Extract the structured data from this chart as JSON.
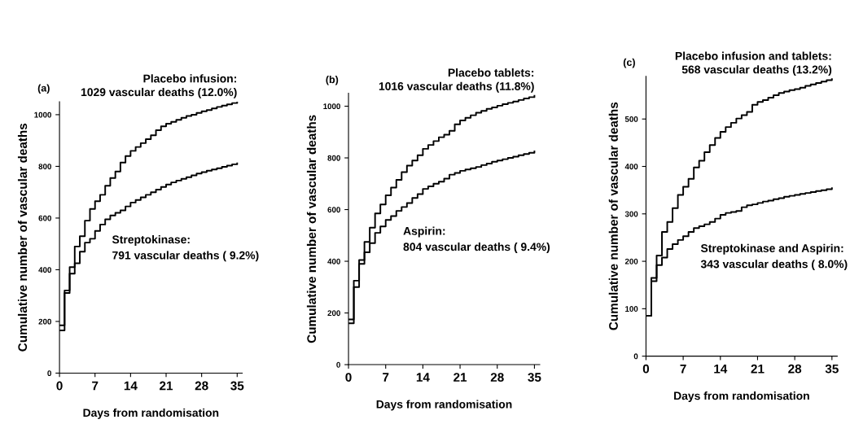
{
  "chart_data": [
    {
      "type": "step",
      "title": "(a)",
      "xlabel": "Days from randomisation",
      "ylabel": "Cumulative number of vascular deaths",
      "x": [
        0,
        1,
        2,
        3,
        4,
        5,
        6,
        7,
        8,
        9,
        10,
        11,
        12,
        13,
        14,
        15,
        16,
        17,
        18,
        19,
        20,
        21,
        22,
        23,
        24,
        25,
        26,
        27,
        28,
        29,
        30,
        31,
        32,
        33,
        34,
        35
      ],
      "series": [
        {
          "name": "Placebo infusion:",
          "color": "#000000",
          "values": [
            185,
            320,
            410,
            490,
            530,
            590,
            635,
            665,
            690,
            725,
            755,
            780,
            815,
            840,
            860,
            875,
            890,
            905,
            920,
            940,
            955,
            965,
            972,
            980,
            988,
            995,
            1000,
            1007,
            1013,
            1018,
            1024,
            1030,
            1035,
            1040,
            1045,
            1050
          ]
        },
        {
          "name": "Streptokinase:",
          "color": "#000000",
          "values": [
            165,
            310,
            385,
            425,
            470,
            505,
            520,
            550,
            575,
            595,
            610,
            620,
            630,
            645,
            660,
            670,
            680,
            690,
            700,
            710,
            720,
            730,
            738,
            745,
            752,
            758,
            765,
            772,
            778,
            783,
            788,
            793,
            798,
            803,
            808,
            812
          ]
        }
      ],
      "annotations": [
        "1029 vascular deaths (12.0%)",
        "791 vascular deaths ( 9.2%)"
      ],
      "xlim": [
        0,
        36
      ],
      "ylim": [
        0,
        1050
      ],
      "xticks": [
        0,
        7,
        14,
        21,
        28,
        35
      ],
      "yticks": [
        0,
        200,
        400,
        600,
        800,
        1000
      ],
      "grid": false,
      "legend": false
    },
    {
      "type": "step",
      "title": "(b)",
      "xlabel": "Days from randomisation",
      "ylabel": "Cumulative number of vascular deaths",
      "x": [
        0,
        1,
        2,
        3,
        4,
        5,
        6,
        7,
        8,
        9,
        10,
        11,
        12,
        13,
        14,
        15,
        16,
        17,
        18,
        19,
        20,
        21,
        22,
        23,
        24,
        25,
        26,
        27,
        28,
        29,
        30,
        31,
        32,
        33,
        34,
        35
      ],
      "series": [
        {
          "name": "Placebo tablets:",
          "color": "#000000",
          "values": [
            175,
            325,
            405,
            475,
            530,
            585,
            620,
            655,
            685,
            715,
            745,
            770,
            790,
            810,
            835,
            850,
            865,
            880,
            890,
            905,
            930,
            945,
            955,
            965,
            975,
            982,
            990,
            995,
            1002,
            1008,
            1013,
            1018,
            1024,
            1030,
            1035,
            1040
          ]
        },
        {
          "name": "Aspirin:",
          "color": "#000000",
          "values": [
            160,
            300,
            390,
            435,
            470,
            510,
            535,
            560,
            575,
            595,
            610,
            625,
            645,
            660,
            680,
            690,
            700,
            708,
            720,
            735,
            742,
            750,
            755,
            760,
            765,
            772,
            778,
            785,
            790,
            795,
            800,
            805,
            810,
            815,
            820,
            825
          ]
        }
      ],
      "annotations": [
        "1016 vascular deaths (11.8%)",
        "804 vascular deaths ( 9.4%)"
      ],
      "xlim": [
        0,
        36
      ],
      "ylim": [
        0,
        1050
      ],
      "xticks": [
        0,
        7,
        14,
        21,
        28,
        35
      ],
      "yticks": [
        0,
        200,
        400,
        600,
        800,
        1000
      ],
      "grid": false,
      "legend": false
    },
    {
      "type": "step",
      "title": "(c)",
      "xlabel": "Days from randomisation",
      "ylabel": "Cumulative number of vascular deaths",
      "x": [
        0,
        1,
        2,
        3,
        4,
        5,
        6,
        7,
        8,
        9,
        10,
        11,
        12,
        13,
        14,
        15,
        16,
        17,
        18,
        19,
        20,
        21,
        22,
        23,
        24,
        25,
        26,
        27,
        28,
        29,
        30,
        31,
        32,
        33,
        34,
        35
      ],
      "series": [
        {
          "name": "Placebo infusion and tablets:",
          "color": "#000000",
          "values": [
            85,
            165,
            212,
            262,
            283,
            312,
            340,
            357,
            374,
            398,
            412,
            430,
            445,
            460,
            473,
            483,
            492,
            501,
            508,
            515,
            530,
            536,
            540,
            545,
            550,
            555,
            558,
            561,
            563,
            566,
            570,
            573,
            576,
            579,
            582,
            584
          ]
        },
        {
          "name": "Streptokinase and Aspirin:",
          "color": "#000000",
          "values": [
            85,
            158,
            192,
            208,
            226,
            236,
            245,
            253,
            262,
            270,
            274,
            278,
            283,
            290,
            298,
            302,
            304,
            306,
            314,
            318,
            320,
            323,
            326,
            328,
            331,
            333,
            336,
            338,
            340,
            342,
            344,
            346,
            348,
            350,
            352,
            354
          ]
        }
      ],
      "annotations": [
        "568 vascular deaths (13.2%)",
        "343 vascular deaths ( 8.0%)"
      ],
      "xlim": [
        0,
        36
      ],
      "ylim": [
        0,
        590
      ],
      "xticks": [
        0,
        7,
        14,
        21,
        28,
        35
      ],
      "yticks": [
        0,
        100,
        200,
        300,
        400,
        500
      ],
      "grid": false,
      "legend": false
    }
  ]
}
